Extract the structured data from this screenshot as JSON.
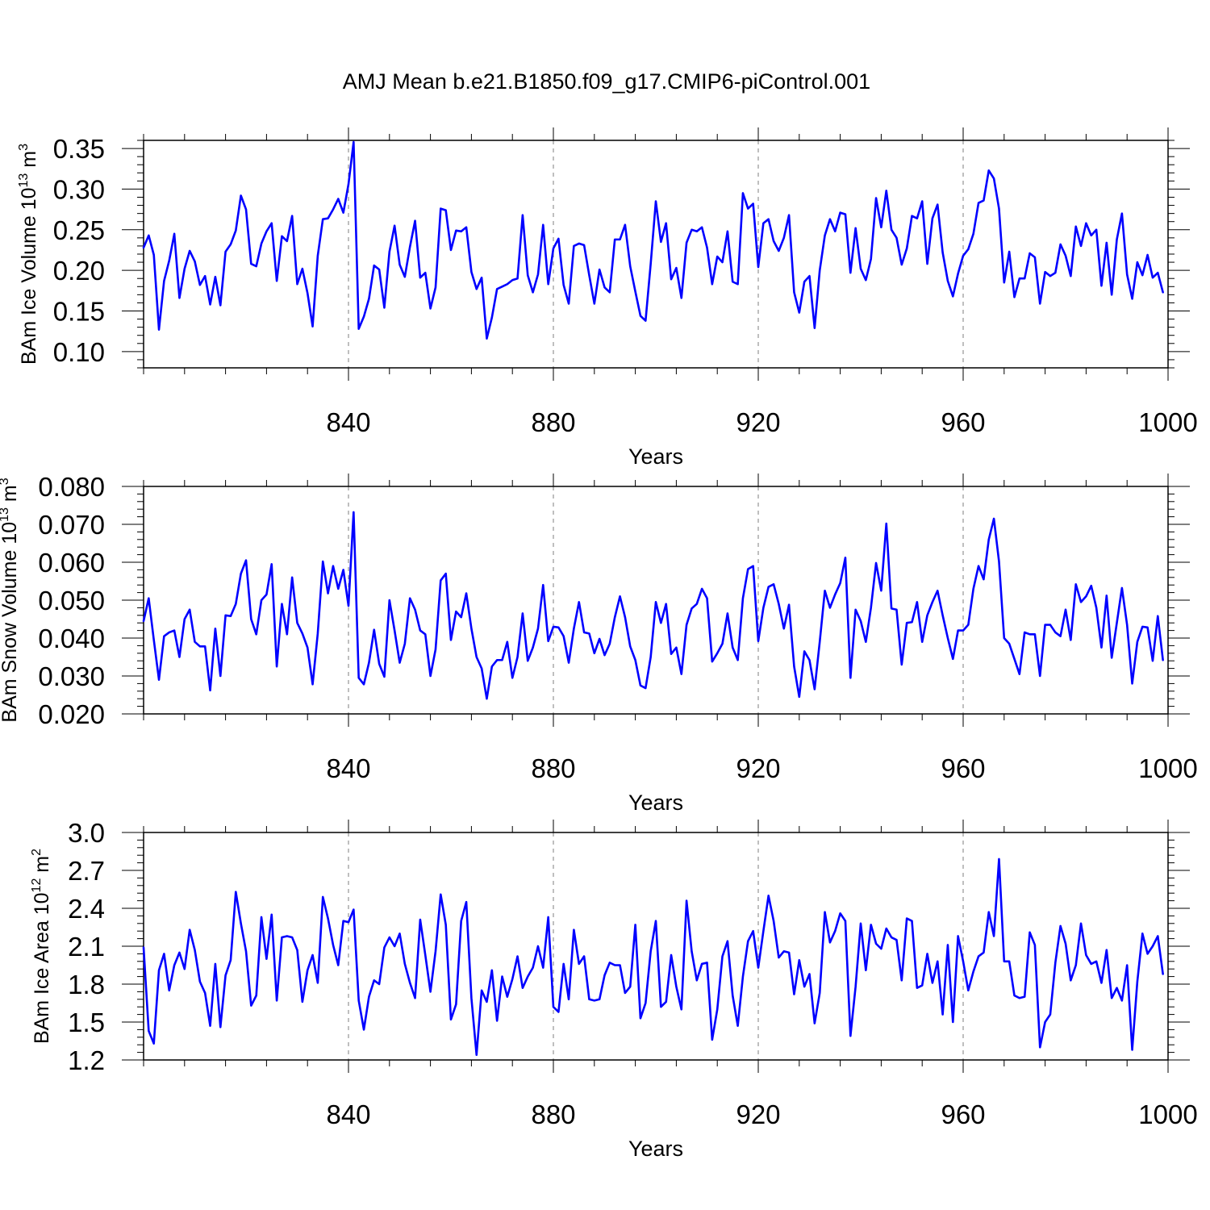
{
  "figure_title": "AMJ Mean b.e21.B1850.f09_g17.CMIP6-piControl.001",
  "colors": {
    "series": "#0000ff",
    "axis": "#000000",
    "grid": "#7f7f7f"
  },
  "chart_data": [
    {
      "type": "line",
      "title": "AMJ Mean b.e21.B1850.f09_g17.CMIP6-piControl.001",
      "xlabel": "Years",
      "ylabel_main": "BAm Ice Volume 10",
      "ylabel_sup": "13",
      "ylabel_unit": "m",
      "ylabel_unit_sup": "3",
      "xlim": [
        800,
        1000
      ],
      "ylim": [
        0.08,
        0.36
      ],
      "xticks": [
        840,
        880,
        920,
        960,
        1000
      ],
      "xtick_labels": [
        "840",
        "880",
        "920",
        "960",
        "1000"
      ],
      "yticks": [
        0.1,
        0.15,
        0.2,
        0.25,
        0.3,
        0.35
      ],
      "ytick_labels": [
        "0.10",
        "0.15",
        "0.20",
        "0.25",
        "0.30",
        "0.35"
      ],
      "grid": "dashed vertical at major x ticks",
      "series": [
        {
          "name": "BAm Ice Volume",
          "x_start": 800,
          "values": [
            0.228,
            0.243,
            0.219,
            0.127,
            0.187,
            0.212,
            0.245,
            0.166,
            0.202,
            0.224,
            0.211,
            0.182,
            0.193,
            0.158,
            0.192,
            0.157,
            0.223,
            0.232,
            0.249,
            0.292,
            0.275,
            0.208,
            0.205,
            0.233,
            0.248,
            0.258,
            0.187,
            0.242,
            0.236,
            0.267,
            0.183,
            0.202,
            0.172,
            0.131,
            0.218,
            0.263,
            0.264,
            0.275,
            0.288,
            0.271,
            0.306,
            0.358,
            0.128,
            0.143,
            0.165,
            0.206,
            0.201,
            0.154,
            0.223,
            0.255,
            0.207,
            0.192,
            0.229,
            0.261,
            0.191,
            0.197,
            0.153,
            0.179,
            0.276,
            0.274,
            0.225,
            0.249,
            0.248,
            0.253,
            0.198,
            0.177,
            0.191,
            0.116,
            0.142,
            0.177,
            0.18,
            0.183,
            0.188,
            0.19,
            0.268,
            0.194,
            0.173,
            0.195,
            0.256,
            0.183,
            0.227,
            0.239,
            0.182,
            0.159,
            0.23,
            0.233,
            0.231,
            0.194,
            0.159,
            0.201,
            0.179,
            0.173,
            0.238,
            0.238,
            0.256,
            0.205,
            0.174,
            0.144,
            0.138,
            0.208,
            0.285,
            0.235,
            0.258,
            0.189,
            0.203,
            0.166,
            0.234,
            0.25,
            0.248,
            0.253,
            0.228,
            0.183,
            0.217,
            0.21,
            0.248,
            0.186,
            0.183,
            0.295,
            0.276,
            0.282,
            0.204,
            0.258,
            0.263,
            0.236,
            0.224,
            0.24,
            0.268,
            0.173,
            0.148,
            0.186,
            0.193,
            0.129,
            0.2,
            0.243,
            0.263,
            0.248,
            0.271,
            0.269,
            0.197,
            0.252,
            0.202,
            0.188,
            0.214,
            0.289,
            0.253,
            0.298,
            0.25,
            0.24,
            0.207,
            0.227,
            0.267,
            0.264,
            0.285,
            0.208,
            0.264,
            0.281,
            0.222,
            0.187,
            0.168,
            0.196,
            0.218,
            0.226,
            0.245,
            0.283,
            0.286,
            0.323,
            0.313,
            0.276,
            0.185,
            0.223,
            0.167,
            0.19,
            0.19,
            0.221,
            0.216,
            0.159,
            0.198,
            0.193,
            0.197,
            0.232,
            0.218,
            0.193,
            0.254,
            0.23,
            0.258,
            0.243,
            0.25,
            0.181,
            0.234,
            0.17,
            0.238,
            0.27,
            0.195,
            0.165,
            0.21,
            0.194,
            0.219,
            0.191,
            0.197,
            0.173
          ]
        }
      ]
    },
    {
      "type": "line",
      "xlabel": "Years",
      "ylabel_main": "BAm Snow Volume 10",
      "ylabel_sup": "13",
      "ylabel_unit": "m",
      "ylabel_unit_sup": "3",
      "xlim": [
        800,
        1000
      ],
      "ylim": [
        0.02,
        0.08
      ],
      "xticks": [
        840,
        880,
        920,
        960,
        1000
      ],
      "xtick_labels": [
        "840",
        "880",
        "920",
        "960",
        "1000"
      ],
      "yticks": [
        0.02,
        0.03,
        0.04,
        0.05,
        0.06,
        0.07,
        0.08
      ],
      "ytick_labels": [
        "0.020",
        "0.030",
        "0.040",
        "0.050",
        "0.060",
        "0.070",
        "0.080"
      ],
      "grid": "dashed vertical at major x ticks",
      "series": [
        {
          "name": "BAm Snow Volume",
          "x_start": 800,
          "values": [
            0.0445,
            0.0505,
            0.0395,
            0.029,
            0.0405,
            0.0415,
            0.042,
            0.035,
            0.045,
            0.0475,
            0.039,
            0.0378,
            0.0378,
            0.0262,
            0.0425,
            0.03,
            0.046,
            0.0458,
            0.049,
            0.057,
            0.0605,
            0.045,
            0.041,
            0.05,
            0.0515,
            0.0595,
            0.0325,
            0.049,
            0.041,
            0.056,
            0.044,
            0.0412,
            0.0375,
            0.0278,
            0.0412,
            0.0602,
            0.0518,
            0.059,
            0.053,
            0.058,
            0.0485,
            0.0732,
            0.0295,
            0.0278,
            0.0335,
            0.0422,
            0.0332,
            0.0298,
            0.05,
            0.042,
            0.0335,
            0.0385,
            0.0505,
            0.0475,
            0.042,
            0.041,
            0.03,
            0.037,
            0.0552,
            0.057,
            0.0395,
            0.047,
            0.0455,
            0.0518,
            0.0425,
            0.035,
            0.032,
            0.024,
            0.0325,
            0.0342,
            0.0342,
            0.039,
            0.0295,
            0.035,
            0.0465,
            0.034,
            0.0375,
            0.0425,
            0.054,
            0.0392,
            0.043,
            0.0428,
            0.0405,
            0.0335,
            0.0425,
            0.0495,
            0.0415,
            0.0412,
            0.036,
            0.0398,
            0.0355,
            0.0385,
            0.0455,
            0.051,
            0.0455,
            0.0378,
            0.0342,
            0.0275,
            0.0268,
            0.035,
            0.0495,
            0.044,
            0.049,
            0.0358,
            0.0375,
            0.0305,
            0.0435,
            0.0478,
            0.049,
            0.053,
            0.0505,
            0.0338,
            0.036,
            0.0385,
            0.0465,
            0.0375,
            0.0342,
            0.0505,
            0.0582,
            0.059,
            0.0392,
            0.048,
            0.0535,
            0.0542,
            0.049,
            0.0425,
            0.0488,
            0.0325,
            0.0245,
            0.0365,
            0.0342,
            0.0265,
            0.039,
            0.0525,
            0.048,
            0.0515,
            0.0545,
            0.0612,
            0.0295,
            0.0475,
            0.0445,
            0.039,
            0.048,
            0.0598,
            0.0525,
            0.0702,
            0.0478,
            0.0475,
            0.033,
            0.044,
            0.0442,
            0.0495,
            0.039,
            0.046,
            0.0495,
            0.0525,
            0.046,
            0.04,
            0.0345,
            0.042,
            0.042,
            0.0435,
            0.053,
            0.059,
            0.0555,
            0.066,
            0.0715,
            0.0602,
            0.04,
            0.0385,
            0.0345,
            0.0305,
            0.0415,
            0.041,
            0.041,
            0.03,
            0.0435,
            0.0435,
            0.0415,
            0.0405,
            0.0475,
            0.0395,
            0.0542,
            0.0495,
            0.051,
            0.0538,
            0.048,
            0.0375,
            0.0512,
            0.0348,
            0.044,
            0.0532,
            0.0435,
            0.028,
            0.039,
            0.043,
            0.0428,
            0.034,
            0.0458,
            0.0342
          ]
        }
      ]
    },
    {
      "type": "line",
      "xlabel": "Years",
      "ylabel_main": "BAm Ice Area 10",
      "ylabel_sup": "12",
      "ylabel_unit": "m",
      "ylabel_unit_sup": "2",
      "xlim": [
        800,
        1000
      ],
      "ylim": [
        1.2,
        3.0
      ],
      "xticks": [
        840,
        880,
        920,
        960,
        1000
      ],
      "xtick_labels": [
        "840",
        "880",
        "920",
        "960",
        "1000"
      ],
      "yticks": [
        1.2,
        1.5,
        1.8,
        2.1,
        2.4,
        2.7,
        3.0
      ],
      "ytick_labels": [
        "1.2",
        "1.5",
        "1.8",
        "2.1",
        "2.4",
        "2.7",
        "3.0"
      ],
      "grid": "dashed vertical at major x ticks",
      "series": [
        {
          "name": "BAm Ice Area",
          "x_start": 800,
          "values": [
            2.09,
            1.43,
            1.33,
            1.91,
            2.04,
            1.75,
            1.95,
            2.05,
            1.92,
            2.23,
            2.07,
            1.82,
            1.73,
            1.47,
            1.96,
            1.46,
            1.87,
            1.99,
            2.53,
            2.28,
            2.06,
            1.63,
            1.71,
            2.33,
            2.0,
            2.35,
            1.67,
            2.17,
            2.18,
            2.17,
            2.07,
            1.66,
            1.91,
            2.03,
            1.81,
            2.49,
            2.32,
            2.11,
            1.95,
            2.3,
            2.29,
            2.39,
            1.67,
            1.44,
            1.7,
            1.83,
            1.8,
            2.09,
            2.17,
            2.1,
            2.2,
            1.96,
            1.81,
            1.69,
            2.31,
            2.03,
            1.74,
            2.06,
            2.51,
            2.27,
            1.52,
            1.64,
            2.3,
            2.45,
            1.69,
            1.24,
            1.75,
            1.66,
            1.91,
            1.51,
            1.86,
            1.7,
            1.84,
            2.02,
            1.77,
            1.86,
            1.93,
            2.1,
            1.93,
            2.33,
            1.62,
            1.58,
            1.96,
            1.68,
            2.23,
            1.96,
            2.02,
            1.68,
            1.67,
            1.68,
            1.87,
            1.97,
            1.95,
            1.95,
            1.73,
            1.78,
            2.27,
            1.53,
            1.65,
            2.06,
            2.3,
            1.62,
            1.66,
            2.03,
            1.78,
            1.6,
            2.46,
            2.06,
            1.83,
            1.96,
            1.97,
            1.36,
            1.6,
            2.02,
            2.14,
            1.71,
            1.47,
            1.86,
            2.14,
            2.22,
            1.93,
            2.22,
            2.5,
            2.3,
            2.01,
            2.06,
            2.05,
            1.72,
            1.99,
            1.78,
            1.88,
            1.49,
            1.73,
            2.37,
            2.13,
            2.22,
            2.36,
            2.3,
            1.39,
            1.78,
            2.28,
            1.91,
            2.27,
            2.12,
            2.08,
            2.24,
            2.17,
            2.15,
            1.83,
            2.32,
            2.3,
            1.77,
            1.79,
            2.04,
            1.81,
            1.98,
            1.56,
            2.11,
            1.5,
            2.18,
            1.98,
            1.75,
            1.9,
            2.02,
            2.05,
            2.37,
            2.18,
            2.79,
            1.98,
            1.98,
            1.71,
            1.69,
            1.7,
            2.21,
            2.11,
            1.3,
            1.5,
            1.56,
            1.97,
            2.26,
            2.12,
            1.83,
            1.95,
            2.28,
            2.03,
            1.96,
            1.98,
            1.81,
            2.07,
            1.69,
            1.77,
            1.67,
            1.95,
            1.28,
            1.82,
            2.2,
            2.04,
            2.1,
            2.18,
            1.88
          ]
        }
      ]
    }
  ]
}
